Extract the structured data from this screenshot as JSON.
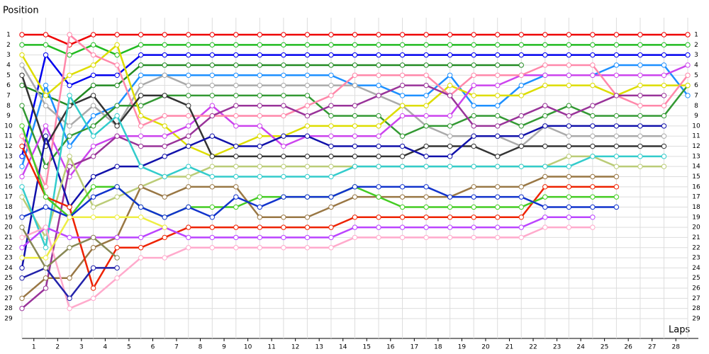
{
  "chart_data": {
    "type": "line",
    "y_label": "Position",
    "x_label": "Laps",
    "x": [
      0,
      1,
      2,
      3,
      4,
      5,
      6,
      7,
      8,
      9,
      10,
      11,
      12,
      13,
      14,
      15,
      16,
      17,
      18,
      19,
      20,
      21,
      22,
      23,
      24,
      25,
      26,
      27,
      28
    ],
    "xlim": [
      0,
      28
    ],
    "xticks": [
      1,
      2,
      3,
      4,
      5,
      6,
      7,
      8,
      9,
      10,
      11,
      12,
      13,
      14,
      15,
      16,
      17,
      18,
      19,
      20,
      21,
      22,
      23,
      24,
      25,
      26,
      27,
      28
    ],
    "ylim": [
      1,
      29
    ],
    "y_inverted": true,
    "yticks": [
      1,
      2,
      3,
      4,
      5,
      6,
      7,
      8,
      9,
      10,
      11,
      12,
      13,
      14,
      15,
      16,
      17,
      18,
      19,
      20,
      21,
      22,
      23,
      24,
      25,
      26,
      27,
      28,
      29
    ],
    "grid": true,
    "series": [
      {
        "color": "#ee0000",
        "values": [
          1,
          1,
          2,
          1,
          1,
          1,
          1,
          1,
          1,
          1,
          1,
          1,
          1,
          1,
          1,
          1,
          1,
          1,
          1,
          1,
          1,
          1,
          1,
          1,
          1,
          1,
          1,
          1,
          1
        ]
      },
      {
        "color": "#22bb22",
        "values": [
          2,
          2,
          3,
          2,
          3,
          2,
          2,
          2,
          2,
          2,
          2,
          2,
          2,
          2,
          2,
          2,
          2,
          2,
          2,
          2,
          2,
          2,
          2,
          2,
          2,
          2,
          2,
          2,
          2
        ]
      },
      {
        "color": "#0000ee",
        "values": [
          13,
          3,
          6,
          5,
          5,
          3,
          3,
          3,
          3,
          3,
          3,
          3,
          3,
          3,
          3,
          3,
          3,
          3,
          3,
          3,
          3,
          3,
          3,
          3,
          3,
          3,
          3,
          3,
          3
        ]
      },
      {
        "color": "#228b22",
        "values": [
          6,
          7,
          8,
          6,
          6,
          4,
          4,
          4,
          4,
          4,
          4,
          4,
          4,
          4,
          4,
          4,
          4,
          4,
          4,
          4,
          4,
          4,
          null,
          null,
          null,
          null,
          null,
          null,
          null
        ]
      },
      {
        "color": "#1e90ff",
        "values": [
          14,
          6,
          12,
          9,
          8,
          5,
          5,
          5,
          5,
          5,
          5,
          5,
          5,
          5,
          6,
          6,
          7,
          7,
          5,
          8,
          8,
          6,
          5,
          5,
          5,
          4,
          4,
          4,
          7
        ]
      },
      {
        "color": "#aaaaaa",
        "values": [
          4,
          8,
          10,
          8,
          10,
          6,
          5,
          6,
          6,
          6,
          6,
          6,
          6,
          6,
          6,
          7,
          8,
          10,
          11,
          11,
          11,
          12,
          10,
          11,
          11,
          11,
          11,
          11,
          null
        ]
      },
      {
        "color": "#339933",
        "values": [
          8,
          14,
          11,
          10,
          8,
          8,
          7,
          7,
          7,
          7,
          7,
          7,
          7,
          9,
          9,
          9,
          11,
          10,
          10,
          9,
          9,
          10,
          9,
          8,
          9,
          9,
          9,
          9,
          6
        ]
      },
      {
        "color": "#dddd00",
        "values": [
          3,
          7,
          5,
          4,
          2,
          9,
          10,
          12,
          13,
          12,
          11,
          11,
          10,
          10,
          10,
          10,
          8,
          8,
          6,
          7,
          7,
          7,
          6,
          6,
          6,
          7,
          6,
          6,
          6
        ]
      },
      {
        "color": "#cc44ee",
        "values": [
          15,
          10,
          15,
          12,
          11,
          11,
          11,
          10,
          8,
          10,
          10,
          12,
          11,
          11,
          11,
          11,
          9,
          9,
          9,
          6,
          6,
          5,
          5,
          5,
          5,
          5,
          5,
          5,
          4
        ]
      },
      {
        "color": "#ff88aa",
        "values": [
          11,
          16,
          1,
          3,
          4,
          10,
          9,
          9,
          9,
          9,
          9,
          9,
          8,
          7,
          5,
          5,
          5,
          5,
          7,
          5,
          5,
          5,
          4,
          4,
          4,
          7,
          8,
          8,
          5
        ]
      },
      {
        "color": "#993399",
        "values": [
          28,
          26,
          14,
          13,
          11,
          12,
          12,
          11,
          9,
          8,
          8,
          8,
          9,
          8,
          8,
          7,
          6,
          6,
          7,
          10,
          10,
          9,
          8,
          9,
          8,
          7,
          7,
          7,
          null
        ]
      },
      {
        "color": "#333333",
        "values": [
          5,
          12,
          8,
          7,
          10,
          7,
          7,
          8,
          13,
          13,
          13,
          13,
          13,
          13,
          13,
          13,
          13,
          12,
          12,
          12,
          13,
          12,
          12,
          12,
          12,
          12,
          12,
          12,
          null
        ]
      },
      {
        "color": "#1111aa",
        "values": [
          24,
          11,
          18,
          15,
          14,
          14,
          13,
          12,
          11,
          12,
          12,
          11,
          11,
          12,
          12,
          12,
          12,
          13,
          13,
          11,
          11,
          11,
          10,
          10,
          10,
          10,
          10,
          10,
          null
        ]
      },
      {
        "color": "#bbcc77",
        "values": [
          17,
          21,
          13,
          18,
          17,
          16,
          15,
          15,
          14,
          14,
          14,
          14,
          14,
          14,
          14,
          14,
          14,
          14,
          14,
          14,
          14,
          14,
          14,
          13,
          13,
          14,
          14,
          14,
          null
        ]
      },
      {
        "color": "#33cccc",
        "values": [
          16,
          22,
          7,
          11,
          9,
          14,
          15,
          14,
          15,
          15,
          15,
          15,
          15,
          15,
          14,
          14,
          14,
          14,
          14,
          14,
          14,
          14,
          14,
          14,
          13,
          13,
          13,
          13,
          null
        ]
      },
      {
        "color": "#997744",
        "values": [
          27,
          25,
          25,
          22,
          21,
          16,
          17,
          16,
          16,
          16,
          19,
          19,
          19,
          18,
          17,
          17,
          17,
          17,
          17,
          16,
          16,
          16,
          15,
          15,
          15,
          15,
          null,
          null,
          null
        ]
      },
      {
        "color": "#ee2200",
        "values": [
          12,
          17,
          18,
          26,
          22,
          22,
          21,
          20,
          20,
          20,
          20,
          20,
          20,
          20,
          19,
          19,
          19,
          19,
          19,
          19,
          19,
          19,
          16,
          16,
          16,
          16,
          null,
          null,
          null
        ]
      },
      {
        "color": "#44cc22",
        "values": [
          10,
          17,
          19,
          16,
          16,
          18,
          19,
          18,
          18,
          18,
          17,
          17,
          17,
          17,
          16,
          17,
          18,
          18,
          18,
          18,
          18,
          18,
          17,
          17,
          17,
          17,
          null,
          null,
          null
        ]
      },
      {
        "color": "#1133cc",
        "values": [
          19,
          18,
          19,
          17,
          16,
          18,
          19,
          18,
          19,
          17,
          18,
          17,
          17,
          17,
          16,
          16,
          16,
          16,
          17,
          17,
          17,
          17,
          18,
          18,
          18,
          18,
          null,
          null,
          null
        ]
      },
      {
        "color": "#bb44ff",
        "values": [
          22,
          20,
          21,
          21,
          21,
          21,
          20,
          21,
          21,
          21,
          21,
          21,
          21,
          21,
          20,
          20,
          20,
          20,
          20,
          20,
          20,
          20,
          19,
          19,
          19,
          null,
          null,
          null,
          null
        ]
      },
      {
        "color": "#ffaacc",
        "values": [
          21,
          20,
          28,
          27,
          25,
          23,
          23,
          22,
          22,
          22,
          22,
          22,
          22,
          22,
          21,
          21,
          21,
          21,
          21,
          21,
          21,
          21,
          20,
          20,
          20,
          null,
          null,
          null,
          null
        ]
      },
      {
        "color": "#eeee44",
        "values": [
          23,
          23,
          19,
          19,
          19,
          19,
          20,
          null,
          null,
          null,
          null,
          null,
          null,
          null,
          null,
          null,
          null,
          null,
          null,
          null,
          null,
          null,
          null,
          null,
          null,
          null,
          null,
          null,
          null
        ]
      },
      {
        "color": "#2222aa",
        "values": [
          25,
          24,
          27,
          24,
          24,
          null,
          null,
          null,
          null,
          null,
          null,
          null,
          null,
          null,
          null,
          null,
          null,
          null,
          null,
          null,
          null,
          null,
          null,
          null,
          null,
          null,
          null,
          null,
          null
        ]
      },
      {
        "color": "#888855",
        "values": [
          20,
          24,
          22,
          21,
          23,
          null,
          null,
          null,
          null,
          null,
          null,
          null,
          null,
          null,
          null,
          null,
          null,
          null,
          null,
          null,
          null,
          null,
          null,
          null,
          null,
          null,
          null,
          null,
          null
        ]
      }
    ]
  }
}
